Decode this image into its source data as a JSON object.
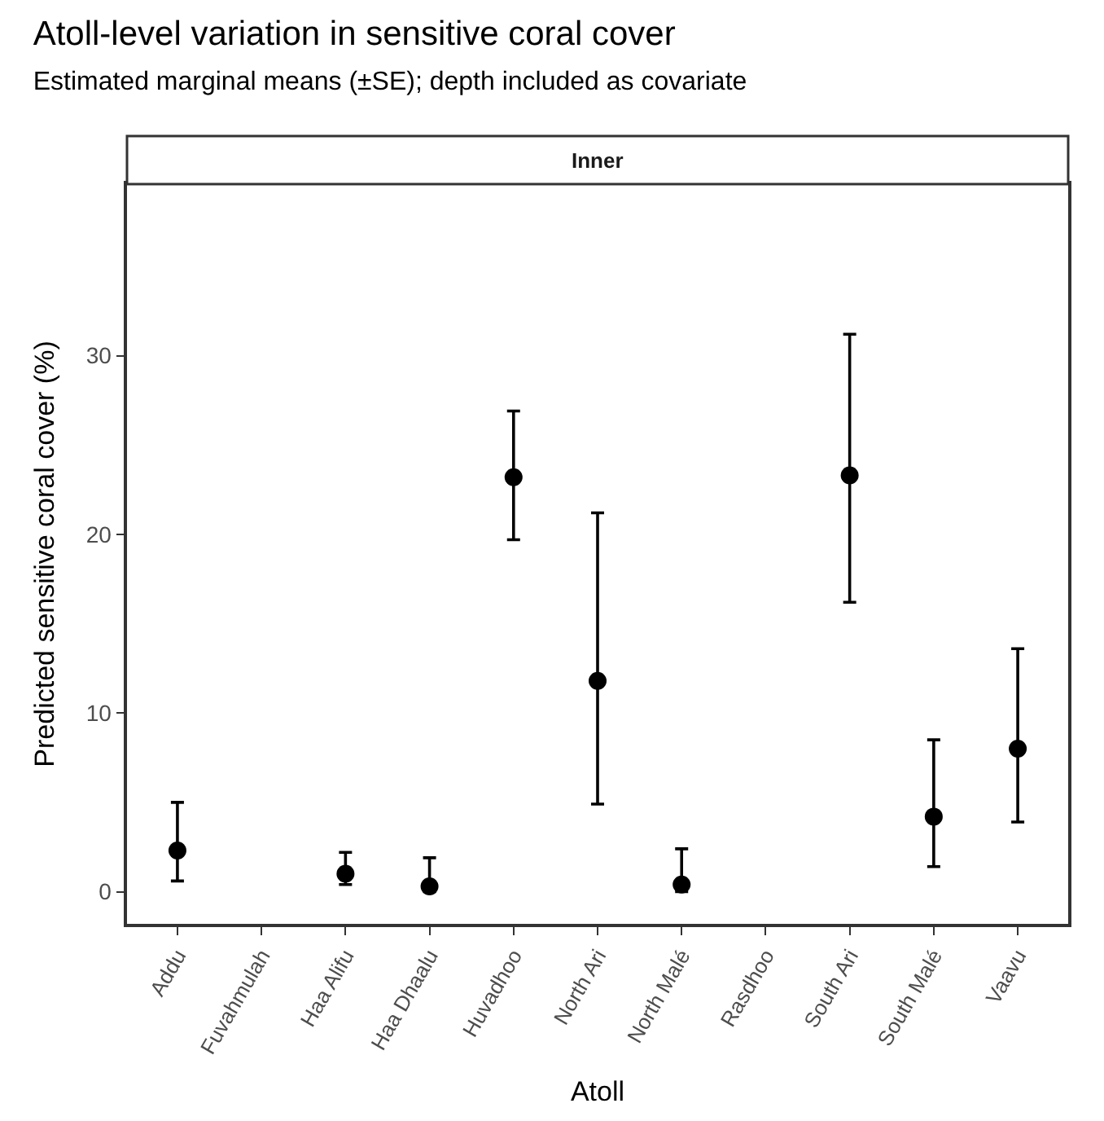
{
  "chart_data": {
    "type": "scatter",
    "title": "Atoll-level variation in sensitive coral cover",
    "subtitle": "Estimated marginal means (±SE); depth included as covariate",
    "xlabel": "Atoll",
    "ylabel": "Predicted sensitive coral cover (%)",
    "annotations": [
      "Inner"
    ],
    "categories": [
      "Addu",
      "Fuvahmulah",
      "Haa Alifu",
      "Haa Dhaalu",
      "Huvadhoo",
      "North Ari",
      "North Malé",
      "Rasdhoo",
      "South Ari",
      "South Malé",
      "Vaavu"
    ],
    "series": [
      {
        "color": "#000000",
        "values": [
          2.3,
          null,
          1.0,
          0.3,
          23.2,
          11.8,
          0.4,
          null,
          23.3,
          4.2,
          8.0
        ],
        "errors": [
          [
            0.6,
            5.0
          ],
          null,
          [
            0.4,
            2.2
          ],
          [
            0.0,
            1.9
          ],
          [
            19.7,
            26.9
          ],
          [
            4.9,
            21.2
          ],
          [
            0.0,
            2.4
          ],
          null,
          [
            16.2,
            31.2
          ],
          [
            1.4,
            8.5
          ],
          [
            3.9,
            13.6
          ]
        ]
      }
    ],
    "ylim": [
      -1.8,
      39.6
    ],
    "yticks": [
      0,
      10,
      20,
      30
    ],
    "grid": false,
    "marker": "circle"
  }
}
